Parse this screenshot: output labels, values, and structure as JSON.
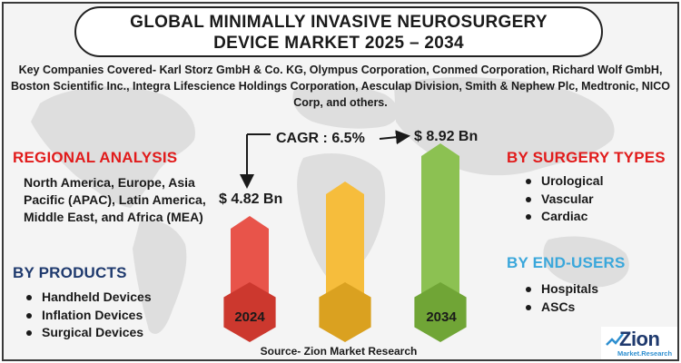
{
  "title": {
    "line1": "GLOBAL MINIMALLY INVASIVE NEUROSURGERY",
    "line2": "DEVICE MARKET 2025 – 2034"
  },
  "companies": "Key Companies Covered- Karl Storz GmbH & Co. KG, Olympus Corporation, Conmed Corporation, Richard Wolf GmbH, Boston Scientific Inc., Integra Lifescience Holdings Corporation, Aesculap Division, Smith & Nephew Plc, Medtronic, NICO Corp, and others.",
  "regional": {
    "heading": "REGIONAL ANALYSIS",
    "text": "North America, Europe, Asia Pacific (APAC), Latin America, Middle East, and Africa (MEA)"
  },
  "products": {
    "heading": "BY PRODUCTS",
    "items": [
      "Handheld Devices",
      "Inflation Devices",
      "Surgical Devices"
    ]
  },
  "surgery_types": {
    "heading": "BY SURGERY TYPES",
    "items": [
      "Urological",
      "Vascular",
      "Cardiac"
    ]
  },
  "end_users": {
    "heading": "BY END-USERS",
    "items": [
      "Hospitals",
      "ASCs"
    ]
  },
  "chart_data": {
    "type": "bar",
    "categories": [
      "2024",
      "",
      "2034"
    ],
    "values": [
      4.82,
      null,
      8.92
    ],
    "value_labels": [
      "$ 4.82 Bn",
      "",
      "$ 8.92 Bn"
    ],
    "cagr_label": "CAGR : 6.5%",
    "colors": [
      "#e8544a",
      "#f6bd3c",
      "#8cc152"
    ]
  },
  "source": "Source- Zion Market Research",
  "logo": {
    "name": "Zion",
    "subtitle": "Market.Research"
  }
}
